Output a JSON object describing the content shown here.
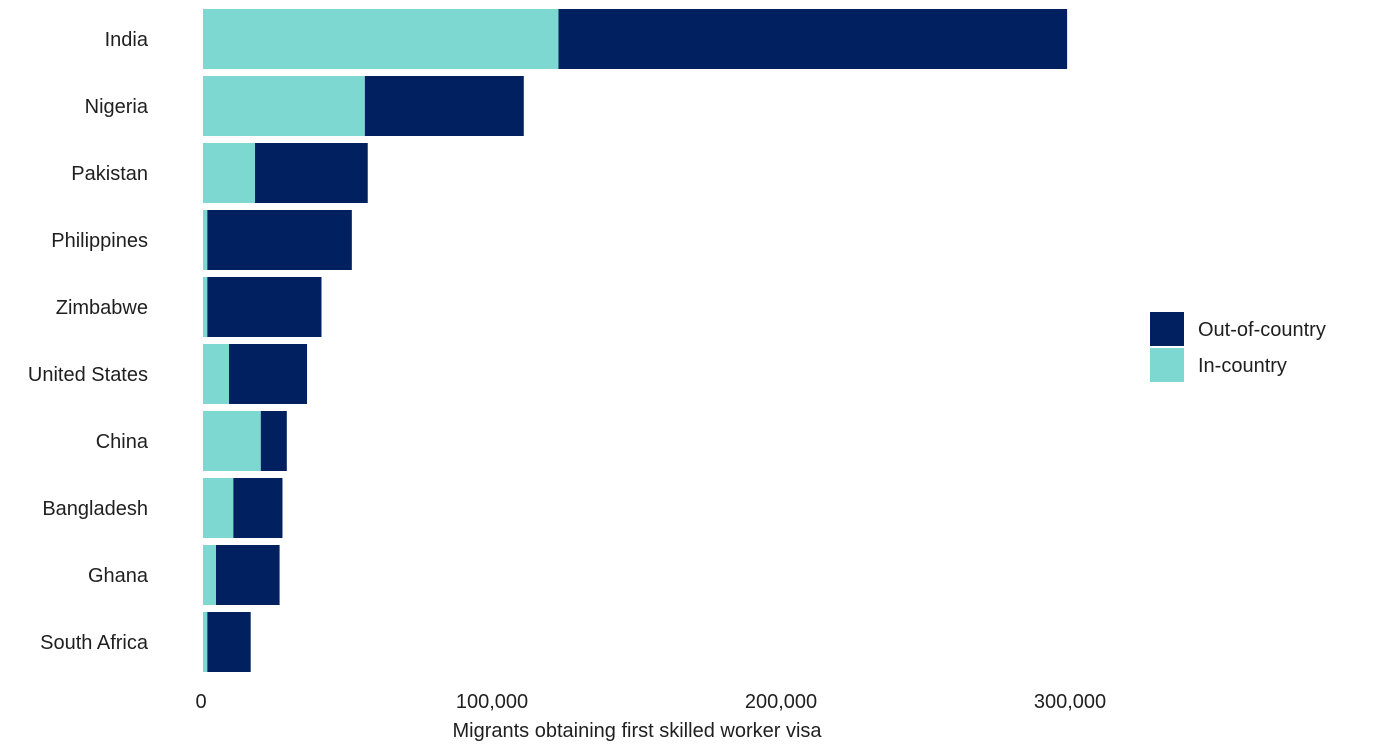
{
  "chart_data": {
    "type": "bar",
    "orientation": "horizontal",
    "stacked": true,
    "title": "",
    "xlabel": "Migrants obtaining first skilled worker visa",
    "ylabel": "",
    "categories": [
      "India",
      "Nigeria",
      "Pakistan",
      "Philippines",
      "Zimbabwe",
      "United States",
      "China",
      "Bangladesh",
      "Ghana",
      "South Africa"
    ],
    "series": [
      {
        "name": "In-country",
        "color": "#7dd8d1",
        "values": [
          123000,
          56000,
          18000,
          1500,
          1500,
          9000,
          20000,
          10500,
          4500,
          1500
        ]
      },
      {
        "name": "Out-of-country",
        "color": "#00205f",
        "values": [
          176000,
          55000,
          39000,
          50000,
          39500,
          27000,
          9000,
          17000,
          22000,
          15000
        ]
      }
    ],
    "xlim": [
      0,
      350000
    ],
    "xticks": [
      0,
      100000,
      200000,
      300000
    ],
    "xtick_labels": [
      "0",
      "100,000",
      "200,000",
      "300,000"
    ],
    "grid": false,
    "legend": {
      "placement": "right",
      "entries": [
        "Out-of-country",
        "In-country"
      ]
    }
  }
}
